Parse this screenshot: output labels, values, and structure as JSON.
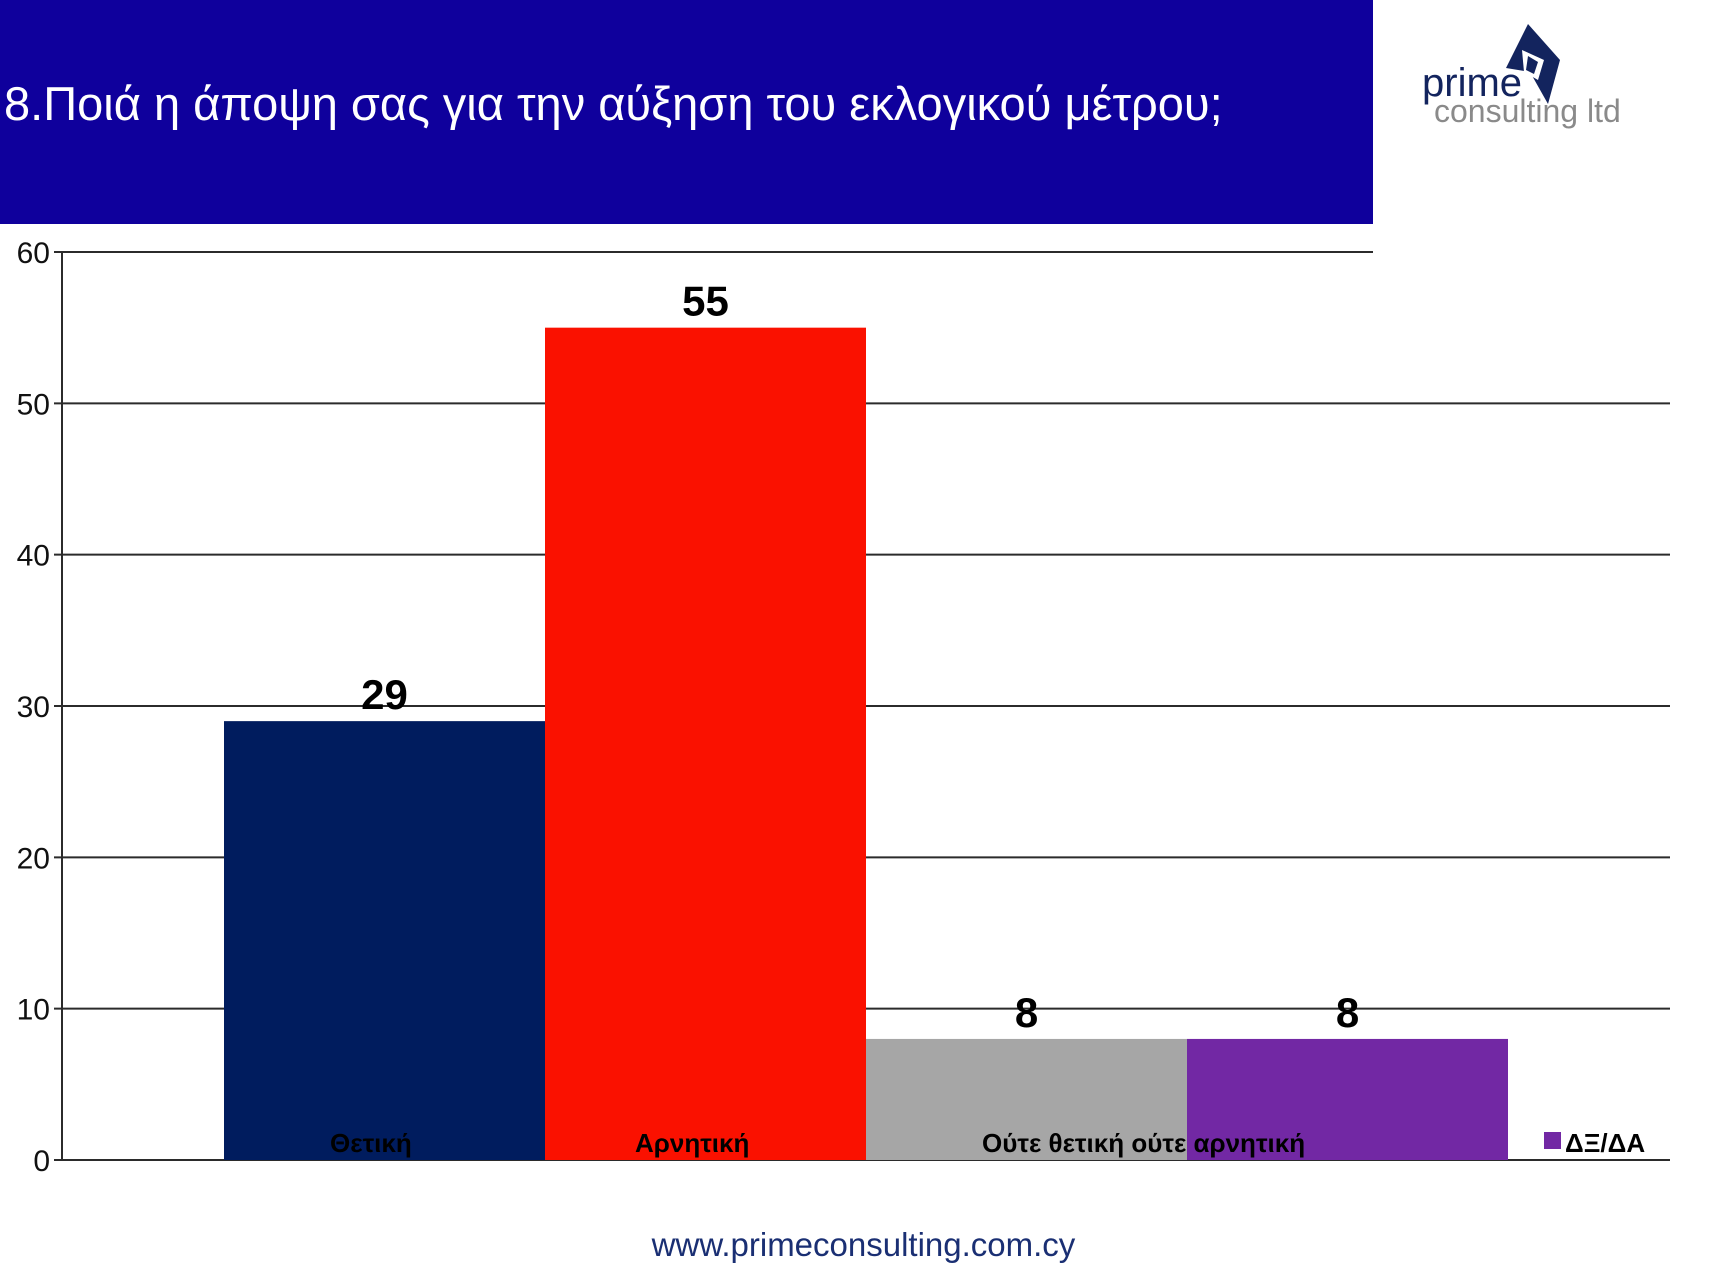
{
  "header": {
    "title": "8.Ποιά η άποψη σας για  την αύξηση του εκλογικού μέτρου;",
    "banner_color": "#0f009c"
  },
  "logo": {
    "line1": "prime",
    "line2": "consulting ltd",
    "icon": "diamond-star-logo-icon"
  },
  "chart_data": {
    "type": "bar",
    "categories": [
      "Θετική",
      "Αρνητική",
      "Ούτε θετική ούτε αρνητική",
      "ΔΞ/ΔΑ"
    ],
    "values": [
      29,
      55,
      8,
      8
    ],
    "colors": [
      "#001c5e",
      "#fa1100",
      "#a6a6a6",
      "#7228a4"
    ],
    "data_labels": [
      "29",
      "55",
      "8",
      "8"
    ],
    "yticks": [
      "0",
      "10",
      "20",
      "30",
      "40",
      "50",
      "60"
    ],
    "ylim": [
      0,
      60
    ],
    "grid": true,
    "legend": {
      "entries": [
        "Θετική",
        "Αρνητική",
        "Ούτε θετική ούτε αρνητική",
        "ΔΞ/ΔΑ"
      ],
      "placement": "bottom, inside plot"
    }
  },
  "footer": {
    "url": "www.primeconsulting.com.cy"
  }
}
